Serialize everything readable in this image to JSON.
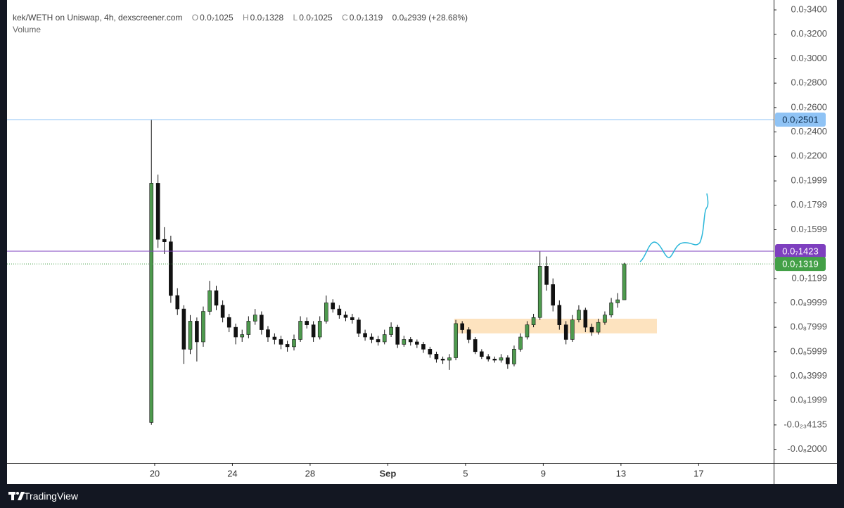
{
  "header": {
    "symbol": "kek/WETH on Uniswap, 4h, dexscreener.com",
    "o_key": "O",
    "o": "0.0₇1025",
    "h_key": "H",
    "h": "0.0₇1328",
    "l_key": "L",
    "l": "0.0₇1025",
    "c_key": "C",
    "c": "0.0₇1319",
    "change": "0.0₈2939 (+28.68%)",
    "volume": "Volume"
  },
  "footer": {
    "brand": "TradingView"
  },
  "chart_data": {
    "type": "candlestick",
    "x": [
      19.83,
      20.17,
      20.5,
      20.83,
      21.17,
      21.5,
      21.83,
      22.17,
      22.5,
      22.83,
      23.17,
      23.5,
      23.83,
      24.17,
      24.5,
      24.83,
      25.17,
      25.5,
      25.83,
      26.17,
      26.5,
      26.83,
      27.17,
      27.5,
      27.83,
      28.17,
      28.5,
      28.83,
      29.17,
      29.5,
      29.83,
      30.17,
      30.5,
      30.83,
      31.17,
      31.5,
      31.83,
      32.17,
      32.5,
      32.83,
      33.17,
      33.5,
      33.83,
      34.17,
      34.5,
      34.83,
      35.17,
      35.5,
      35.83,
      36.17,
      36.5,
      36.83,
      37.17,
      37.5,
      37.83,
      38.17,
      38.5,
      38.83,
      39.17,
      39.5,
      39.83,
      40.17,
      40.5,
      40.83,
      41.17,
      41.5,
      41.83,
      42.17,
      42.5,
      42.83,
      43.17,
      43.5,
      43.83,
      44.17
    ],
    "open": [
      2e-10,
      1.98e-08,
      1.52e-08,
      1.5e-08,
      1.06e-08,
      9.5e-09,
      6.2e-09,
      8.5e-09,
      6.8e-09,
      9.3e-09,
      1.1e-08,
      9.8e-09,
      8.8e-09,
      8e-09,
      7.2e-09,
      7.4e-09,
      8.5e-09,
      9e-09,
      7.8e-09,
      7.2e-09,
      7e-09,
      6.6e-09,
      6.4e-09,
      7e-09,
      8.5e-09,
      8.2e-09,
      7.2e-09,
      8.5e-09,
      1e-08,
      9.5e-09,
      9e-09,
      8.8e-09,
      8.6e-09,
      7.5e-09,
      7.2e-09,
      7e-09,
      6.8e-09,
      7.4e-09,
      8e-09,
      6.6e-09,
      7e-09,
      6.8e-09,
      6.6e-09,
      6.2e-09,
      5.8e-09,
      5.4e-09,
      5.3e-09,
      5.5e-09,
      8.3e-09,
      7.8e-09,
      7e-09,
      6e-09,
      5.6e-09,
      5.4e-09,
      5.3e-09,
      5.5e-09,
      5e-09,
      6.2e-09,
      7.2e-09,
      8.2e-09,
      8.8e-09,
      1.3e-08,
      1.15e-08,
      9.8e-09,
      8.2e-09,
      7e-09,
      8.6e-09,
      9.4e-09,
      8e-09,
      7.6e-09,
      8.4e-09,
      9e-09,
      1e-08,
      1.025e-08
    ],
    "high": [
      2.5e-08,
      2.05e-08,
      1.62e-08,
      1.55e-08,
      1.12e-08,
      9.8e-09,
      9e-09,
      8.8e-09,
      9.7e-09,
      1.18e-08,
      1.14e-08,
      1.02e-08,
      9.1e-09,
      8.3e-09,
      7.8e-09,
      8.9e-09,
      9.5e-09,
      9.3e-09,
      8.1e-09,
      7.5e-09,
      7.3e-09,
      6.9e-09,
      7.4e-09,
      8.9e-09,
      8.8e-09,
      8.5e-09,
      8.9e-09,
      1.06e-08,
      1.03e-08,
      9.8e-09,
      9.3e-09,
      9.1e-09,
      8.8e-09,
      7.8e-09,
      7.5e-09,
      7.3e-09,
      7.8e-09,
      8.4e-09,
      8.2e-09,
      7.3e-09,
      7.2e-09,
      7e-09,
      6.8e-09,
      6.4e-09,
      6e-09,
      5.6e-09,
      5.8e-09,
      8.6e-09,
      8.5e-09,
      8e-09,
      7.2e-09,
      6.2e-09,
      5.8e-09,
      5.6e-09,
      5.8e-09,
      5.7e-09,
      6.5e-09,
      7.5e-09,
      8.5e-09,
      9.1e-09,
      1.42e-08,
      1.38e-08,
      1.2e-08,
      1.02e-08,
      8.5e-09,
      9e-09,
      9.8e-09,
      9.6e-09,
      8.3e-09,
      8.7e-09,
      9.3e-09,
      1.04e-08,
      1.08e-08,
      1.328e-08
    ],
    "low": [
      1e-11,
      1.45e-08,
      1.4e-08,
      1e-08,
      9e-09,
      5e-09,
      5.8e-09,
      5.2e-09,
      6.4e-09,
      9e-09,
      9.4e-09,
      8.4e-09,
      7.6e-09,
      6.6e-09,
      6.8e-09,
      7.1e-09,
      8.2e-09,
      7.4e-09,
      6.8e-09,
      6.6e-09,
      6.2e-09,
      6e-09,
      6.1e-09,
      6.8e-09,
      7.9e-09,
      6.8e-09,
      7e-09,
      8.3e-09,
      9.2e-09,
      8.7e-09,
      8.5e-09,
      8.3e-09,
      7.2e-09,
      6.9e-09,
      6.7e-09,
      6.5e-09,
      6.6e-09,
      7.2e-09,
      6.3e-09,
      6.4e-09,
      6.5e-09,
      6.3e-09,
      5.9e-09,
      5.5e-09,
      5.1e-09,
      5e-09,
      4.5e-09,
      5.3e-09,
      7.5e-09,
      6.7e-09,
      5.8e-09,
      5.4e-09,
      5.2e-09,
      5.1e-09,
      5.1e-09,
      4.6e-09,
      4.8e-09,
      6e-09,
      7e-09,
      8e-09,
      8.6e-09,
      1.1e-08,
      9.3e-09,
      7.8e-09,
      6.6e-09,
      6.8e-09,
      8.4e-09,
      7.6e-09,
      7.3e-09,
      7.4e-09,
      8.2e-09,
      8.8e-09,
      9.6e-09,
      1.025e-08
    ],
    "close": [
      1.98e-08,
      1.52e-08,
      1.5e-08,
      1.06e-08,
      9.5e-09,
      6.2e-09,
      8.5e-09,
      6.8e-09,
      9.3e-09,
      1.1e-08,
      9.8e-09,
      8.8e-09,
      8e-09,
      7.2e-09,
      7.4e-09,
      8.5e-09,
      9e-09,
      7.8e-09,
      7.2e-09,
      7e-09,
      6.6e-09,
      6.4e-09,
      7e-09,
      8.5e-09,
      8.2e-09,
      7.2e-09,
      8.5e-09,
      1e-08,
      9.5e-09,
      9e-09,
      8.8e-09,
      8.6e-09,
      7.5e-09,
      7.2e-09,
      7e-09,
      6.8e-09,
      7.4e-09,
      8e-09,
      6.6e-09,
      7e-09,
      6.8e-09,
      6.6e-09,
      6.2e-09,
      5.8e-09,
      5.4e-09,
      5.3e-09,
      5.5e-09,
      8.3e-09,
      7.8e-09,
      7e-09,
      6e-09,
      5.6e-09,
      5.4e-09,
      5.3e-09,
      5.5e-09,
      5e-09,
      6.2e-09,
      7.2e-09,
      8.2e-09,
      8.8e-09,
      1.3e-08,
      1.15e-08,
      9.8e-09,
      8.2e-09,
      7e-09,
      8.6e-09,
      9.4e-09,
      8e-09,
      7.6e-09,
      8.4e-09,
      9e-09,
      1e-08,
      1.025e-08,
      1.319e-08
    ],
    "up_color": "#4e9a4e",
    "down_color": "#111111",
    "xlim": [
      12.4,
      51.86
    ],
    "xticks": [
      20,
      24,
      28,
      {
        "value": 32,
        "label": "Sep"
      },
      {
        "value": 36,
        "label": "5"
      },
      {
        "value": 40,
        "label": "9"
      },
      {
        "value": 44,
        "label": "13"
      },
      {
        "value": 48,
        "label": "17"
      }
    ],
    "ylim": [
      -3.118e-09,
      3.481e-08
    ],
    "yticks": [
      {
        "value": 3.4e-08,
        "label": "0.0₇3400"
      },
      {
        "value": 3.2e-08,
        "label": "0.0₇3200"
      },
      {
        "value": 3e-08,
        "label": "0.0₇3000"
      },
      {
        "value": 2.8e-08,
        "label": "0.0₇2800"
      },
      {
        "value": 2.6e-08,
        "label": "0.0₇2600"
      },
      {
        "value": 2.4e-08,
        "label": "0.0₇2400"
      },
      {
        "value": 2.2e-08,
        "label": "0.0₇2200"
      },
      {
        "value": 1.999e-08,
        "label": "0.0₇1999"
      },
      {
        "value": 1.799e-08,
        "label": "0.0₇1799"
      },
      {
        "value": 1.599e-08,
        "label": "0.0₇1599"
      },
      {
        "value": 1.199e-08,
        "label": "0.0₇1199"
      },
      {
        "value": 9.999e-09,
        "label": "0.0₈9999"
      },
      {
        "value": 7.999e-09,
        "label": "0.0₈7999"
      },
      {
        "value": 5.999e-09,
        "label": "0.0₈5999"
      },
      {
        "value": 3.999e-09,
        "label": "0.0₈3999"
      },
      {
        "value": 1.999e-09,
        "label": "0.0₈1999"
      },
      {
        "value": -4.135e-24,
        "label": "-0.0₂₃4135"
      },
      {
        "value": -2e-09,
        "label": "-0.0₈2000"
      }
    ],
    "hlines": [
      {
        "value": 2.501e-08,
        "label": "0.0₇2501",
        "color": "#8fc3f5",
        "text_color": "#0b2a4a",
        "style": "solid"
      },
      {
        "value": 1.423e-08,
        "label": "0.0₇1423",
        "color": "#7e3fbf",
        "text_color": "#ffffff",
        "style": "solid"
      },
      {
        "value": 1.319e-08,
        "label": "0.0₇1319",
        "color": "#43a047",
        "text_color": "#ffffff",
        "style": "dotted"
      }
    ],
    "zone": {
      "xlim": [
        35.42,
        45.85
      ],
      "ylim": [
        7.5e-09,
        8.7e-09
      ],
      "color": "#fde3bf"
    }
  }
}
